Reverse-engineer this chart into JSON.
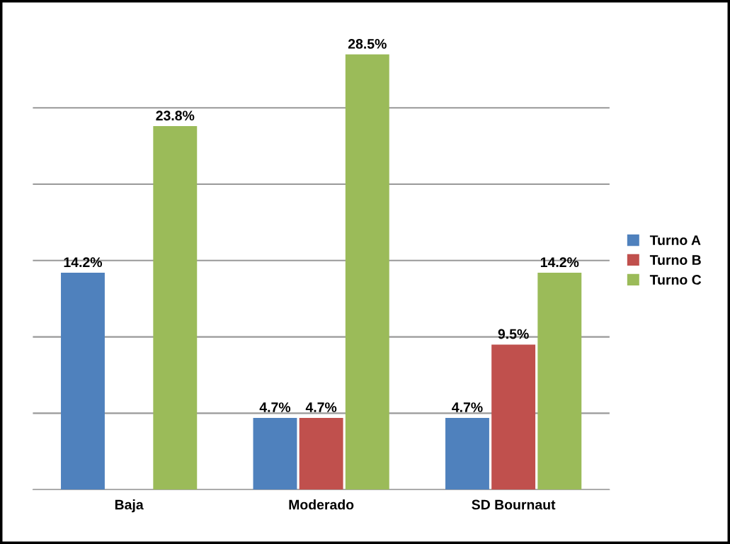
{
  "chart_data": {
    "type": "bar",
    "categories": [
      "Baja",
      "Moderado",
      "SD Bournaut"
    ],
    "series": [
      {
        "name": "Turno A",
        "color": "#4f81bd",
        "values": [
          14.2,
          4.7,
          4.7
        ],
        "value_labels": [
          "14.2%",
          "4.7%",
          "4.7%"
        ]
      },
      {
        "name": "Turno B",
        "color": "#c0504d",
        "values": [
          null,
          4.7,
          9.5
        ],
        "value_labels": [
          null,
          "4.7%",
          "9.5%"
        ]
      },
      {
        "name": "Turno C",
        "color": "#9bbb59",
        "values": [
          23.8,
          28.5,
          14.2
        ],
        "value_labels": [
          "23.8%",
          "28.5%",
          "14.2%"
        ]
      }
    ],
    "grid": "y",
    "legend": "right"
  }
}
